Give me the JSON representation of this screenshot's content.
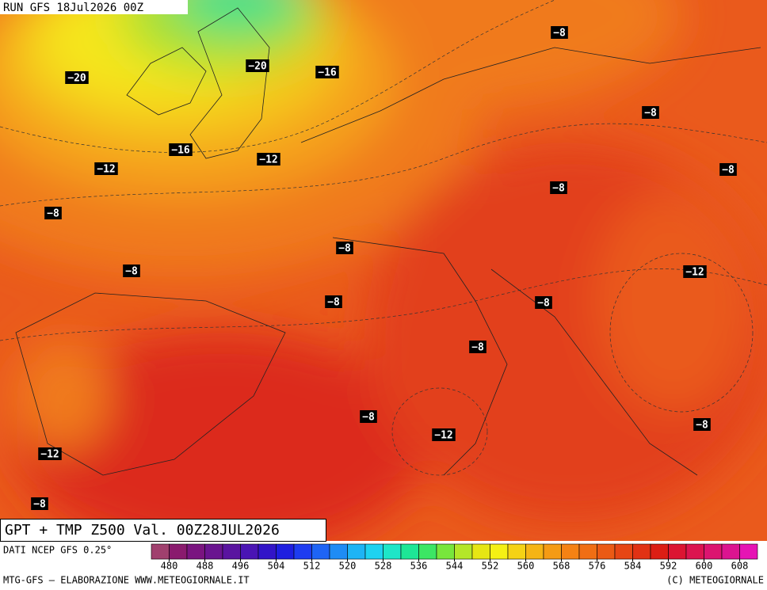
{
  "header": {
    "run": "RUN GFS 18Jul2026 00Z"
  },
  "map": {
    "labels": [
      "−20",
      "−20",
      "−16",
      "−8",
      "−8",
      "−16",
      "−12",
      "−12",
      "−8",
      "−8",
      "−8",
      "−8",
      "−8",
      "−12",
      "−8",
      "−8",
      "−8",
      "−8",
      "−12",
      "−8",
      "−12",
      "−8"
    ]
  },
  "footer": {
    "title": "GPT + TMP Z500 Val. 00Z28JUL2026",
    "source": "DATI NCEP GFS 0.25°",
    "credit_left": "MTG-GFS — ELABORAZIONE WWW.METEOGIORNALE.IT",
    "credit_right": "(C) METEOGIORNALE"
  },
  "legend": {
    "ticks": [
      480,
      488,
      496,
      504,
      512,
      520,
      528,
      536,
      544,
      552,
      560,
      568,
      576,
      584,
      592,
      600,
      608
    ],
    "colors": [
      "#a0406e",
      "#8a1a6e",
      "#7a1480",
      "#6a1490",
      "#5a14a0",
      "#4a14b4",
      "#3214c8",
      "#1e1ee0",
      "#1e3cf0",
      "#1e64f5",
      "#1e8cf5",
      "#1eb4f5",
      "#1ed2f0",
      "#1ee6c8",
      "#1ee696",
      "#3ce664",
      "#78e63c",
      "#b4e628",
      "#e6e614",
      "#f5f014",
      "#f5d214",
      "#f5b414",
      "#f59b14",
      "#f58214",
      "#f06e14",
      "#eb5a14",
      "#e64614",
      "#e13214",
      "#dc1e14",
      "#dc1432",
      "#dc1450",
      "#dc1470",
      "#dc1490",
      "#e614b4"
    ]
  }
}
